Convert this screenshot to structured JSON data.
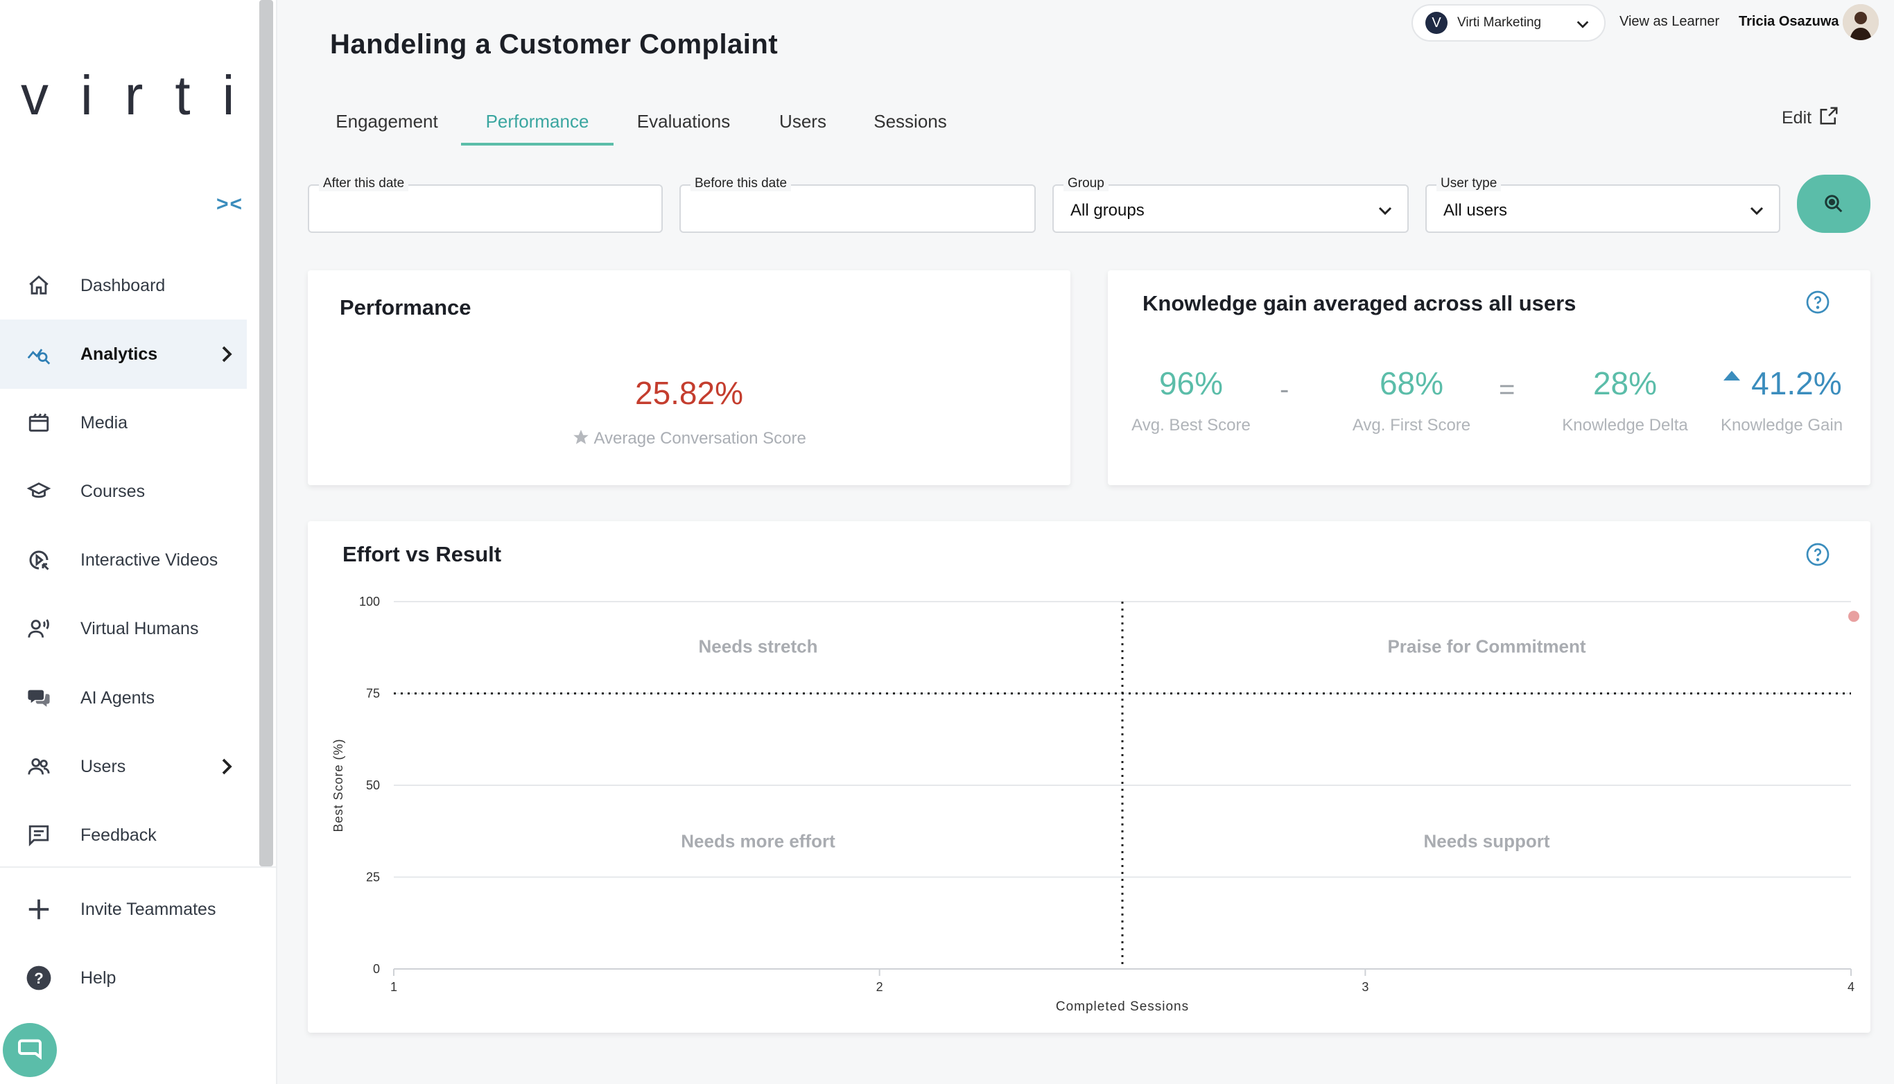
{
  "brand": {
    "logo_text": "virti",
    "accent": "#5bbda9",
    "link_blue": "#3b8dbd",
    "alert_red": "#c43d2e"
  },
  "sidebar": {
    "collapse_icon": "collapse-arrows-icon",
    "items": [
      {
        "label": "Dashboard",
        "icon": "home-icon"
      },
      {
        "label": "Analytics",
        "icon": "analytics-icon",
        "active": true,
        "has_submenu": true
      },
      {
        "label": "Media",
        "icon": "film-icon"
      },
      {
        "label": "Courses",
        "icon": "graduation-cap-icon"
      },
      {
        "label": "Interactive Videos",
        "icon": "interactive-video-icon"
      },
      {
        "label": "Virtual Humans",
        "icon": "virtual-human-icon"
      },
      {
        "label": "AI Agents",
        "icon": "chat-bubbles-icon"
      },
      {
        "label": "Users",
        "icon": "users-icon",
        "has_submenu": true
      },
      {
        "label": "Feedback",
        "icon": "feedback-icon"
      },
      {
        "label": "Invite Teammates",
        "icon": "plus-icon"
      },
      {
        "label": "Help",
        "icon": "help-icon"
      }
    ]
  },
  "header": {
    "org_initial": "V",
    "org_name": "Virti Marketing",
    "view_as_learner": "View as Learner",
    "user_name": "Tricia Osazuwa",
    "page_title": "Handeling a Customer Complaint",
    "edit_label": "Edit"
  },
  "tabs": [
    {
      "label": "Engagement"
    },
    {
      "label": "Performance",
      "active": true
    },
    {
      "label": "Evaluations"
    },
    {
      "label": "Users"
    },
    {
      "label": "Sessions"
    }
  ],
  "filters": {
    "after_label": "After this date",
    "after_value": "",
    "before_label": "Before this date",
    "before_value": "",
    "group_label": "Group",
    "group_value": "All groups",
    "user_type_label": "User type",
    "user_type_value": "All users"
  },
  "performance": {
    "title": "Performance",
    "value": "25.82%",
    "label": "Average Conversation Score"
  },
  "knowledge_gain": {
    "title": "Knowledge gain averaged across all users",
    "best": {
      "value": "96%",
      "label": "Avg. Best Score"
    },
    "minus": "-",
    "first": {
      "value": "68%",
      "label": "Avg. First Score"
    },
    "equals": "=",
    "delta": {
      "value": "28%",
      "label": "Knowledge Delta"
    },
    "gain": {
      "value": "41.2%",
      "label": "Knowledge Gain"
    }
  },
  "effort": {
    "title": "Effort vs Result"
  },
  "chart_data": {
    "type": "scatter",
    "title": "Effort vs Result",
    "xlabel": "Completed Sessions",
    "ylabel": "Best Score (%)",
    "xlim": [
      1,
      4
    ],
    "ylim": [
      0,
      100
    ],
    "x_ticks": [
      1,
      2,
      3,
      4
    ],
    "y_ticks": [
      0,
      25,
      50,
      75,
      100
    ],
    "threshold_x": 2.5,
    "threshold_y": 75,
    "quadrants": {
      "top_left": "Needs stretch",
      "top_right": "Praise for Commitment",
      "bottom_left": "Needs more effort",
      "bottom_right": "Needs support"
    },
    "points": [
      {
        "x": 4,
        "y": 96
      }
    ],
    "point_color": "#e8a0a0",
    "grid": true
  }
}
